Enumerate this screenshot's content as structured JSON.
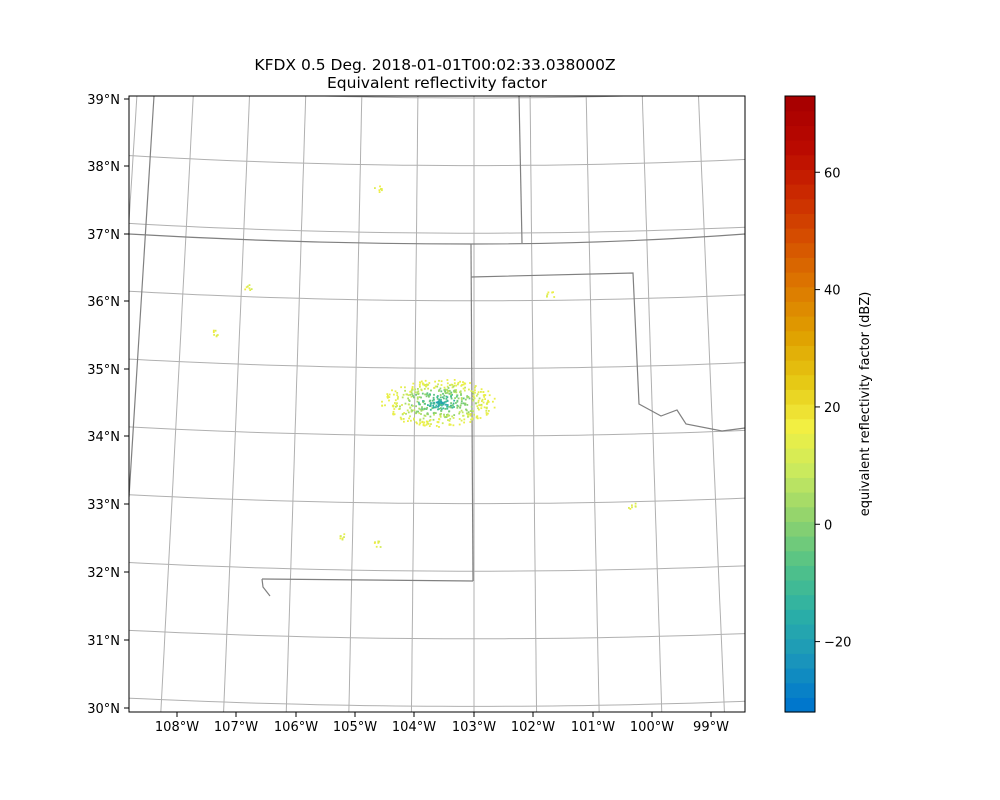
{
  "chart_data": {
    "type": "radar_ppi_map",
    "title": "KFDX 0.5 Deg. 2018-01-01T00:02:33.038000Z",
    "subtitle": "Equivalent reflectivity factor",
    "x_ticks": [
      "108°W",
      "107°W",
      "106°W",
      "105°W",
      "104°W",
      "103°W",
      "102°W",
      "101°W",
      "100°W",
      "99°W"
    ],
    "y_ticks": [
      "39°N",
      "38°N",
      "37°N",
      "36°N",
      "35°N",
      "34°N",
      "33°N",
      "32°N",
      "31°N",
      "30°N"
    ],
    "xlim": [
      -108.8,
      -98.5
    ],
    "ylim": [
      29.95,
      39.05
    ],
    "grid": true,
    "colorbar": {
      "label": "equivalent reflectivity factor (dBZ)",
      "vmin": -32,
      "vmax": 73,
      "ticks": [
        -20,
        0,
        20,
        40,
        60
      ],
      "tick_labels": [
        "−20",
        "0",
        "20",
        "40",
        "60"
      ],
      "colormap": "NWS reflectivity (LangRainbow)",
      "colors": [
        "#0077cc",
        "#1a96bb",
        "#2bb0a6",
        "#52c287",
        "#8ed26e",
        "#c7e95f",
        "#f2f043",
        "#e6c814",
        "#e0a000",
        "#dd7a00",
        "#d65200",
        "#cc2b00",
        "#bb0a00",
        "#a80000"
      ]
    },
    "echo_clusters": [
      {
        "name": "main echo near radar",
        "lon": -103.6,
        "lat": 34.5,
        "dbz_range": [
          -25,
          15
        ]
      },
      {
        "name": "isolated echo",
        "lon": -104.6,
        "lat": 32.4,
        "dbz_range": [
          10,
          18
        ]
      },
      {
        "name": "isolated echo",
        "lon": -104.7,
        "lat": 37.65,
        "dbz_range": [
          10,
          18
        ]
      },
      {
        "name": "isolated echo",
        "lon": -106.9,
        "lat": 36.15,
        "dbz_range": [
          10,
          18
        ]
      },
      {
        "name": "isolated echo",
        "lon": -101.7,
        "lat": 36.1,
        "dbz_range": [
          10,
          18
        ]
      },
      {
        "name": "isolated echo",
        "lon": -107.4,
        "lat": 35.45,
        "dbz_range": [
          10,
          18
        ]
      },
      {
        "name": "isolated echo",
        "lon": -105.2,
        "lat": 32.5,
        "dbz_range": [
          10,
          18
        ]
      },
      {
        "name": "isolated echo",
        "lon": -100.4,
        "lat": 32.95,
        "dbz_range": [
          10,
          18
        ]
      }
    ],
    "map_features": [
      "state borders",
      "lat/lon gridlines"
    ]
  }
}
